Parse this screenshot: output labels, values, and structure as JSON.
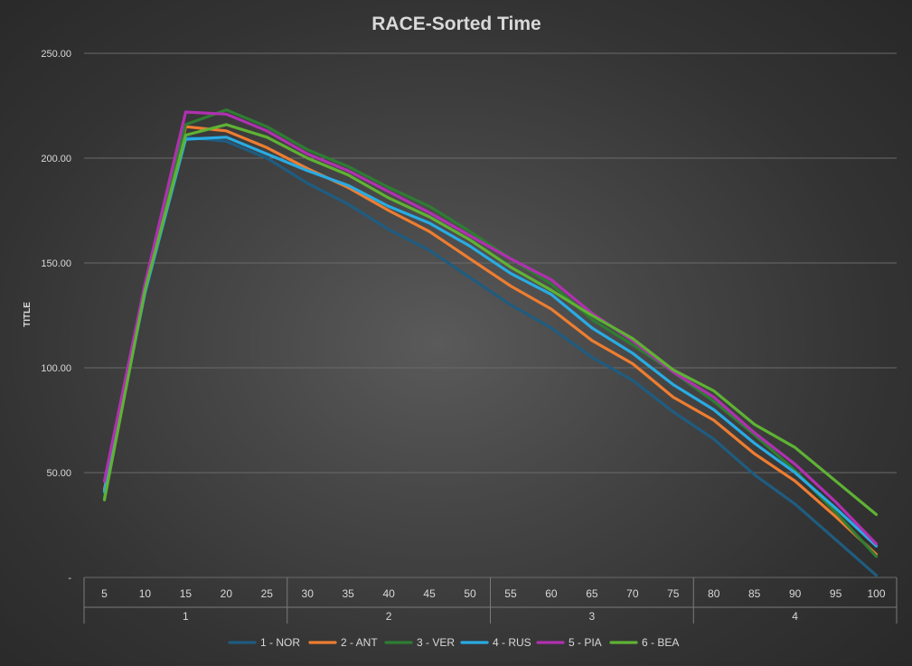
{
  "chart_data": {
    "type": "line",
    "title": "RACE-Sorted Time",
    "ylabel": "TITLE",
    "xlabel": "",
    "ylim": [
      0,
      250
    ],
    "y_ticks": [
      {
        "value": 0,
        "label": "-"
      },
      {
        "value": 50,
        "label": "50.00"
      },
      {
        "value": 100,
        "label": "100.00"
      },
      {
        "value": 150,
        "label": "150.00"
      },
      {
        "value": 200,
        "label": "200.00"
      },
      {
        "value": 250,
        "label": "250.00"
      }
    ],
    "x": [
      "5",
      "10",
      "15",
      "20",
      "25",
      "30",
      "35",
      "40",
      "45",
      "50",
      "55",
      "60",
      "65",
      "70",
      "75",
      "80",
      "85",
      "90",
      "95",
      "100"
    ],
    "groups": [
      {
        "label": "1",
        "categories": [
          "5",
          "10",
          "15",
          "20",
          "25"
        ]
      },
      {
        "label": "2",
        "categories": [
          "30",
          "35",
          "40",
          "45",
          "50"
        ]
      },
      {
        "label": "3",
        "categories": [
          "55",
          "60",
          "65",
          "70",
          "75"
        ]
      },
      {
        "label": "4",
        "categories": [
          "80",
          "85",
          "90",
          "95",
          "100"
        ]
      }
    ],
    "grid": true,
    "legend_position": "bottom",
    "series": [
      {
        "name": "1 - NOR",
        "color": "#1f5c80",
        "values": [
          40,
          135,
          210,
          208,
          200,
          188,
          178,
          166,
          156,
          143,
          130,
          119,
          105,
          94,
          79,
          66,
          49,
          35,
          18,
          1
        ]
      },
      {
        "name": "2 - ANT",
        "color": "#ed7d31",
        "values": [
          42,
          136,
          215,
          213,
          205,
          195,
          186,
          175,
          165,
          152,
          139,
          128,
          113,
          102,
          86,
          75,
          59,
          46,
          29,
          11
        ]
      },
      {
        "name": "3 - VER",
        "color": "#2e7d32",
        "values": [
          38,
          138,
          216,
          223,
          215,
          204,
          196,
          186,
          177,
          165,
          152,
          140,
          123,
          111,
          98,
          84,
          68,
          51,
          31,
          10
        ]
      },
      {
        "name": "4 - RUS",
        "color": "#29abe2",
        "values": [
          41,
          136,
          209,
          210,
          202,
          194,
          187,
          177,
          169,
          158,
          145,
          135,
          119,
          107,
          92,
          80,
          64,
          50,
          33,
          15
        ]
      },
      {
        "name": "5 - PIA",
        "color": "#b030b0",
        "values": [
          46,
          140,
          222,
          221,
          213,
          202,
          194,
          184,
          174,
          163,
          152,
          142,
          126,
          113,
          98,
          86,
          69,
          54,
          36,
          16
        ]
      },
      {
        "name": "6 - BEA",
        "color": "#5fb234",
        "values": [
          37,
          137,
          211,
          216,
          210,
          200,
          192,
          181,
          172,
          161,
          148,
          137,
          125,
          114,
          99,
          89,
          73,
          62,
          46,
          30
        ]
      }
    ]
  }
}
